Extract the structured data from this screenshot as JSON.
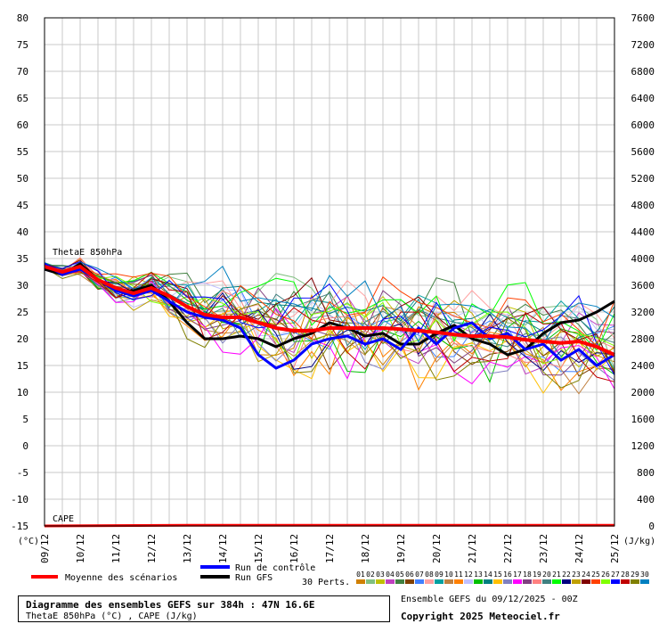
{
  "chart_data": {
    "type": "line",
    "y_left": {
      "ticks": [
        80,
        75,
        70,
        65,
        60,
        55,
        50,
        45,
        40,
        35,
        30,
        25,
        20,
        15,
        10,
        5,
        0,
        -5,
        -10,
        -15
      ],
      "range": [
        -15,
        80
      ]
    },
    "y_right": {
      "ticks": [
        7600,
        7200,
        6800,
        6400,
        6000,
        5600,
        5200,
        4800,
        4400,
        4000,
        3600,
        3200,
        2800,
        2400,
        2000,
        1600,
        1200,
        800,
        400,
        0
      ],
      "range": [
        0,
        7600
      ]
    },
    "x_ticks": [
      "09/12",
      "10/12",
      "11/12",
      "12/12",
      "13/12",
      "14/12",
      "15/12",
      "16/12",
      "17/12",
      "18/12",
      "19/12",
      "20/12",
      "21/12",
      "22/12",
      "23/12",
      "24/12",
      "25/12"
    ],
    "x_range": [
      0,
      384
    ],
    "unit_left": "(°C)",
    "unit_right": "(J/kg)",
    "label_thetae": "ThetaE 850hPa",
    "label_cape": "CAPE",
    "grid": true,
    "series": [
      {
        "name": "Moyenne des scénarios",
        "color": "#ff0000",
        "x": [
          0,
          12,
          24,
          36,
          48,
          60,
          72,
          84,
          96,
          108,
          120,
          132,
          144,
          156,
          168,
          180,
          192,
          204,
          216,
          228,
          240,
          252,
          264,
          276,
          288,
          300,
          312,
          324,
          336,
          348,
          360,
          372,
          384
        ],
        "values": [
          33.5,
          32.5,
          33.5,
          31,
          29.5,
          28.5,
          29.5,
          28,
          26,
          24.5,
          24,
          24,
          23,
          22,
          21.5,
          21.5,
          22,
          22,
          22,
          22,
          21.8,
          21.5,
          21.2,
          20.8,
          20.5,
          20.5,
          20.3,
          19.8,
          19.5,
          19.2,
          19.5,
          18.5,
          17
        ]
      },
      {
        "name": "Run de contrôle",
        "color": "#0000ff",
        "x": [
          0,
          12,
          24,
          36,
          48,
          60,
          72,
          84,
          96,
          108,
          120,
          132,
          144,
          156,
          168,
          180,
          192,
          204,
          216,
          228,
          240,
          252,
          264,
          276,
          288,
          300,
          312,
          324,
          336,
          348,
          360,
          372,
          384
        ],
        "values": [
          34,
          32,
          33,
          31,
          29,
          28,
          29,
          27,
          25,
          24,
          23.5,
          22,
          17,
          14.5,
          16,
          19,
          20,
          20.5,
          19,
          20,
          18,
          22,
          19,
          22,
          23,
          20,
          21,
          18,
          19,
          16,
          18,
          15,
          17
        ]
      },
      {
        "name": "Run GFS",
        "color": "#000000",
        "x": [
          0,
          12,
          24,
          36,
          48,
          60,
          72,
          84,
          96,
          108,
          120,
          132,
          144,
          156,
          168,
          180,
          192,
          204,
          216,
          228,
          240,
          252,
          264,
          276,
          288,
          300,
          312,
          324,
          336,
          348,
          360,
          372,
          384
        ],
        "values": [
          33,
          32,
          34,
          31,
          29,
          29,
          30,
          27,
          23,
          20,
          20,
          20.5,
          20,
          18.5,
          20,
          21,
          23,
          22,
          20.5,
          21,
          19,
          19,
          21,
          22.5,
          20,
          19,
          17,
          18,
          21,
          23,
          23.5,
          25,
          27
        ]
      },
      {
        "name": "CAPE",
        "axis": "right",
        "color": "#ff0000",
        "x": [
          0,
          96,
          192,
          288,
          384
        ],
        "values": [
          0,
          10,
          10,
          10,
          10
        ]
      }
    ],
    "perturbation_count": 30,
    "legend": {
      "mean_label": "Moyenne des scénarios",
      "control_label": "Run de contrôle",
      "gfs_label": "Run GFS",
      "perts_label": "30 Perts.",
      "pert_ids": [
        "01",
        "02",
        "03",
        "04",
        "05",
        "06",
        "07",
        "08",
        "09",
        "10",
        "11",
        "12",
        "13",
        "14",
        "15",
        "16",
        "17",
        "18",
        "19",
        "20",
        "21",
        "22",
        "23",
        "24",
        "25",
        "26",
        "27",
        "28",
        "29",
        "30"
      ],
      "pert_colors": [
        "#d08000",
        "#80c080",
        "#c0c000",
        "#c040c0",
        "#408040",
        "#804000",
        "#4080ff",
        "#ffa0a0",
        "#00a0a0",
        "#c08040",
        "#ff8000",
        "#c0c0ff",
        "#00c000",
        "#008080",
        "#ffc000",
        "#8080c0",
        "#ff00ff",
        "#804080",
        "#ff8080",
        "#408080",
        "#00ff00",
        "#000080",
        "#c0a000",
        "#800000",
        "#ff4000",
        "#80ff00",
        "#0000ff",
        "#c00000",
        "#808000",
        "#0080c0"
      ]
    }
  },
  "footer": {
    "title": "Diagramme des ensembles GEFS sur 384h : 47N 16.6E",
    "subtitle": "ThetaE 850hPa (°C) , CAPE (J/kg)",
    "run": "Ensemble GEFS du 09/12/2025 - 00Z",
    "copyright": "Copyright 2025 Meteociel.fr"
  }
}
